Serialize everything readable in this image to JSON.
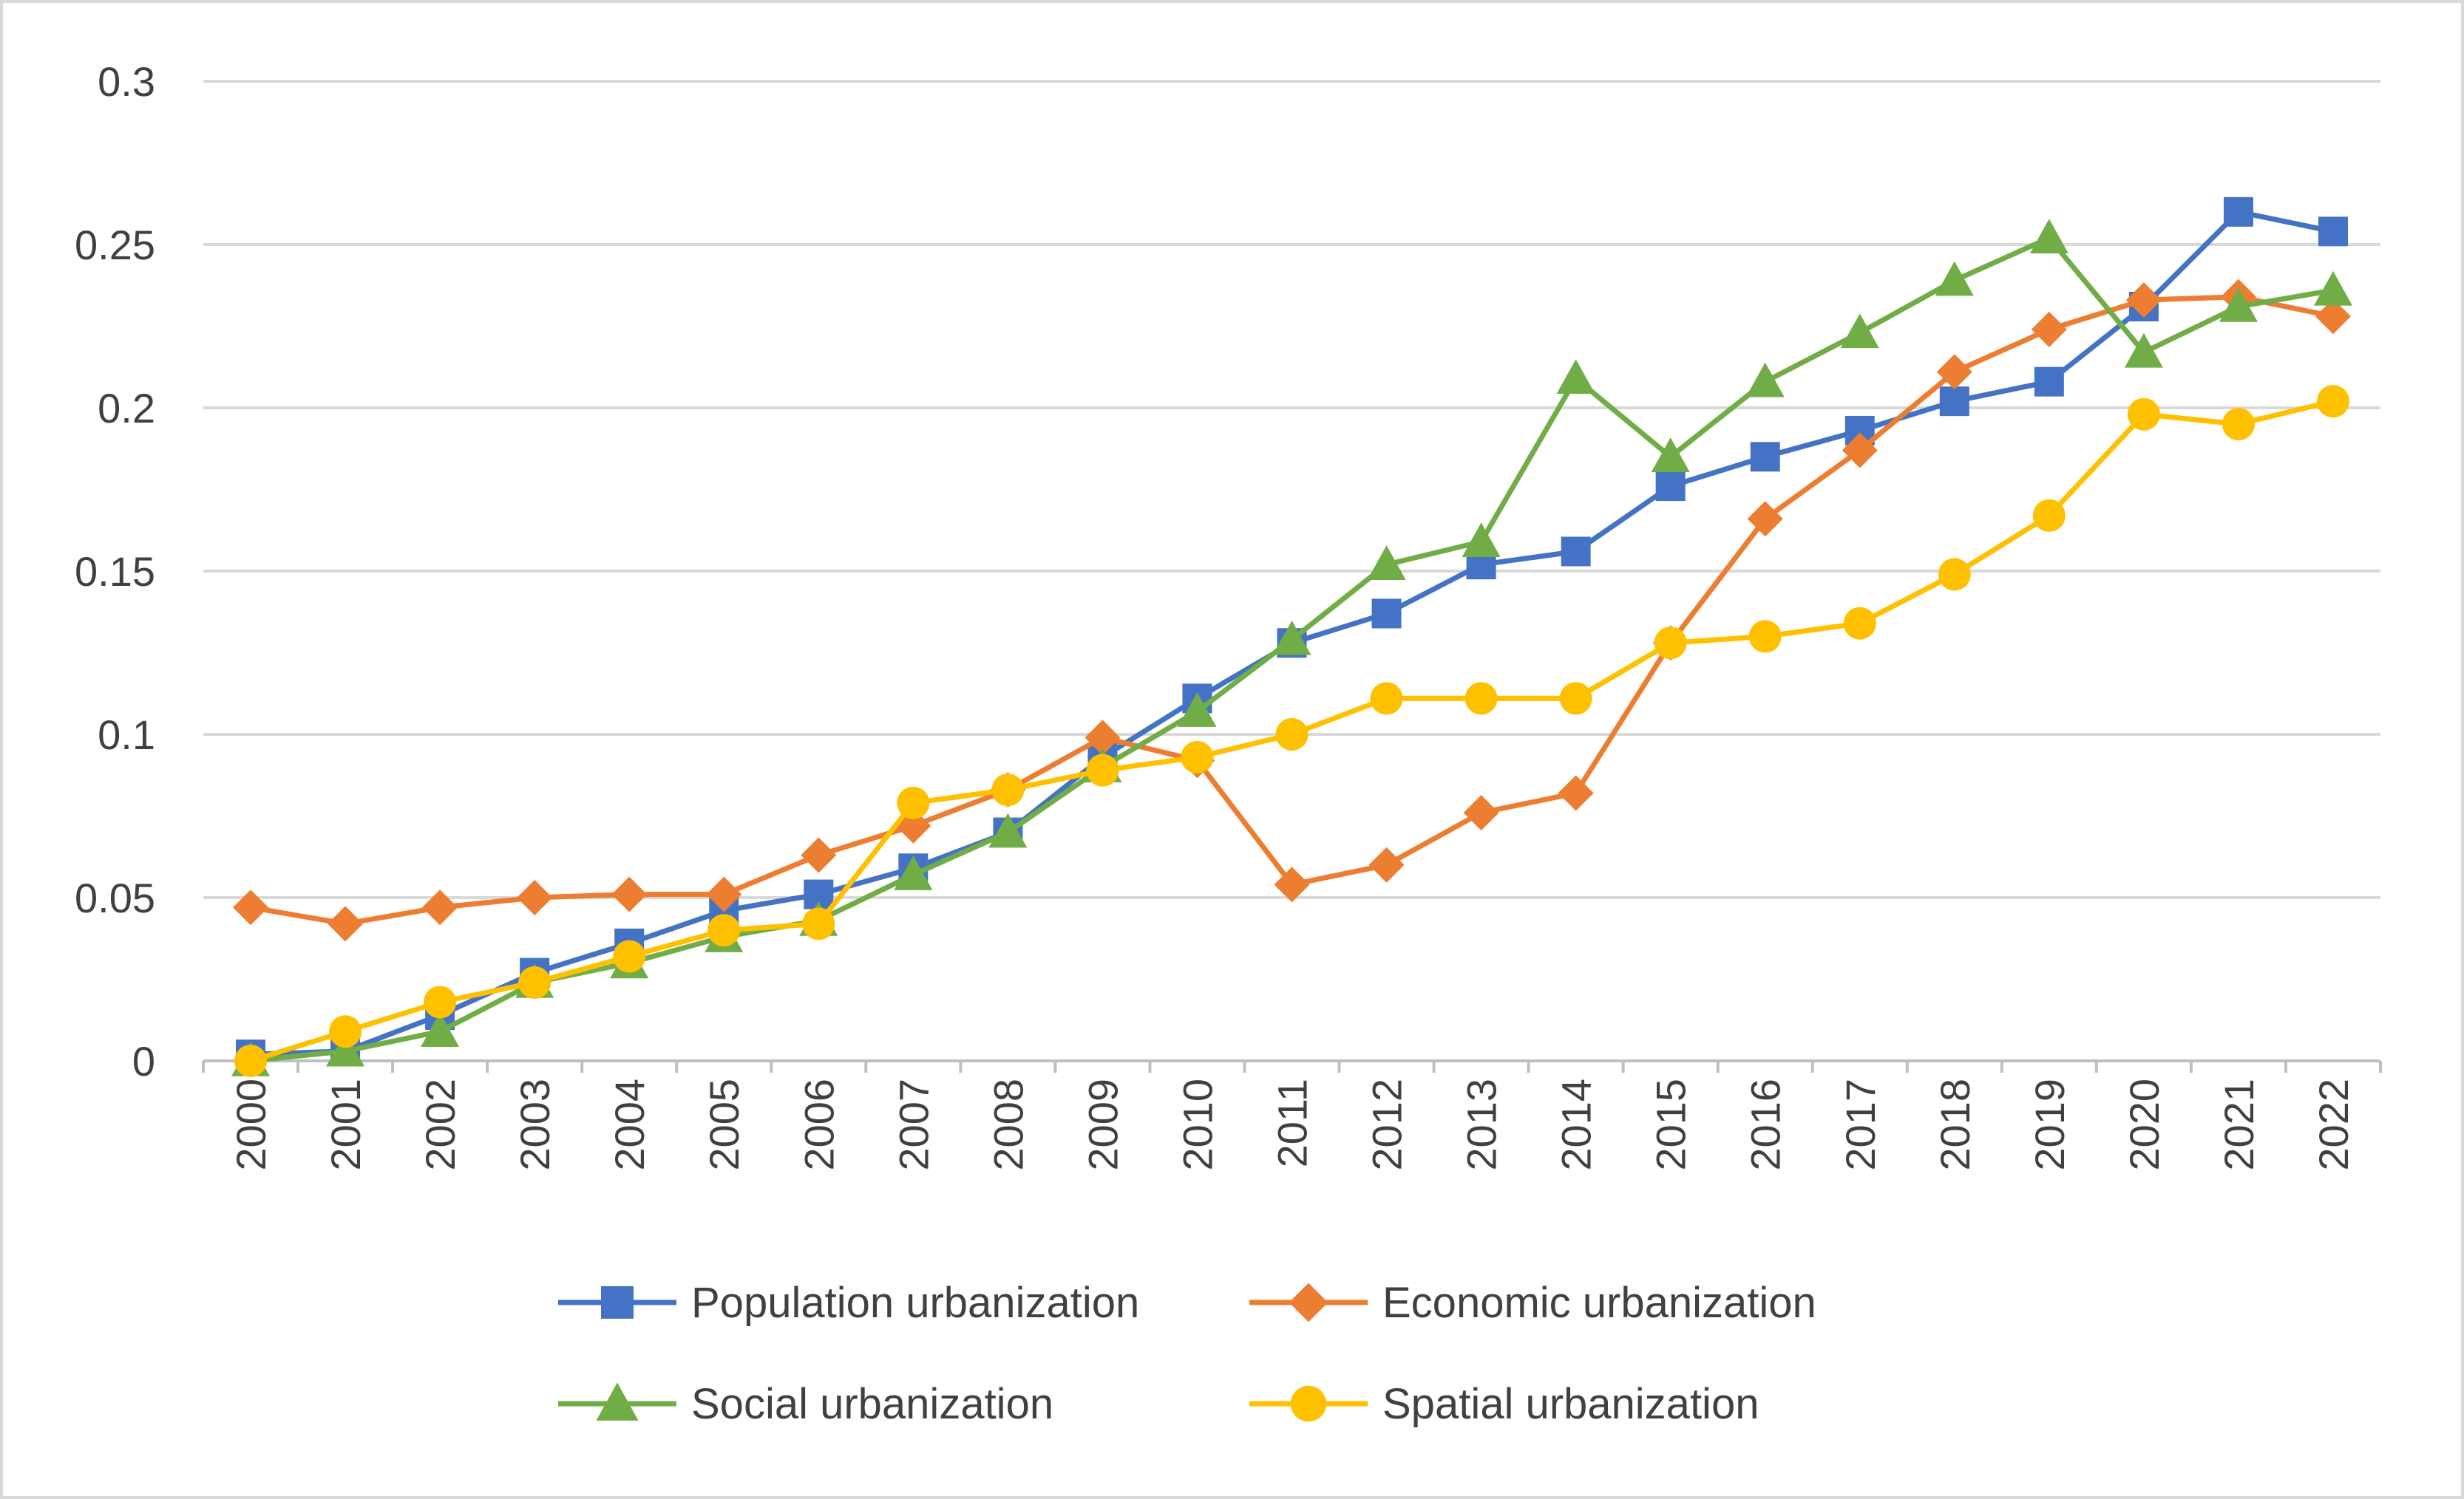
{
  "chart_data": {
    "type": "line",
    "title": "",
    "xlabel": "",
    "ylabel": "",
    "ylim": [
      0,
      0.3
    ],
    "yticks": [
      "0",
      "0.05",
      "0.1",
      "0.15",
      "0.2",
      "0.25",
      "0.3"
    ],
    "grid": true,
    "legend_position": "bottom",
    "categories": [
      "2000",
      "2001",
      "2002",
      "2003",
      "2004",
      "2005",
      "2006",
      "2007",
      "2008",
      "2009",
      "2010",
      "2011",
      "2012",
      "2013",
      "2014",
      "2015",
      "2016",
      "2017",
      "2018",
      "2019",
      "2020",
      "2021",
      "2022"
    ],
    "series": [
      {
        "name": "Population urbanization",
        "color": "#4472c4",
        "marker": "square",
        "values": [
          0.002,
          0.003,
          0.014,
          0.027,
          0.036,
          0.046,
          0.051,
          0.059,
          0.07,
          0.093,
          0.111,
          0.128,
          0.137,
          0.152,
          0.156,
          0.176,
          0.185,
          0.193,
          0.202,
          0.208,
          0.231,
          0.26,
          0.254
        ]
      },
      {
        "name": "Economic urbanization",
        "color": "#ed7d31",
        "marker": "diamond",
        "values": [
          0.047,
          0.042,
          0.047,
          0.05,
          0.051,
          0.051,
          0.063,
          0.072,
          0.083,
          0.099,
          0.092,
          0.054,
          0.06,
          0.076,
          0.082,
          0.128,
          0.166,
          0.187,
          0.211,
          0.224,
          0.233,
          0.234,
          0.228
        ]
      },
      {
        "name": "Social urbanization",
        "color": "#70ad47",
        "marker": "triangle",
        "values": [
          0.0,
          0.003,
          0.009,
          0.024,
          0.03,
          0.038,
          0.043,
          0.057,
          0.07,
          0.09,
          0.107,
          0.129,
          0.152,
          0.159,
          0.209,
          0.185,
          0.208,
          0.223,
          0.239,
          0.252,
          0.217,
          0.231,
          0.236
        ]
      },
      {
        "name": "Spatial urbanization",
        "color": "#ffc000",
        "marker": "circle",
        "values": [
          0.0,
          0.009,
          0.018,
          0.024,
          0.032,
          0.04,
          0.042,
          0.079,
          0.083,
          0.089,
          0.093,
          0.1,
          0.111,
          0.111,
          0.111,
          0.128,
          0.13,
          0.134,
          0.149,
          0.167,
          0.198,
          0.195,
          0.202
        ]
      }
    ]
  }
}
